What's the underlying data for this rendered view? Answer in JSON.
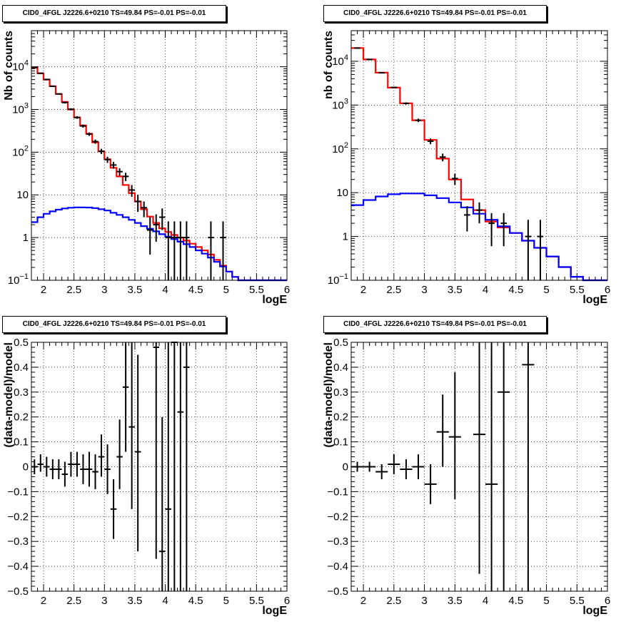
{
  "panels": [
    {
      "title": "CID0_4FGL J2226.6+0210 TS=49.84 PS=-0.01 PS=-0.01",
      "chart_data": {
        "type": "line",
        "xlabel": "logE",
        "ylabel": "Nb of counts",
        "log_y": true,
        "xlim": [
          1.8,
          6.0
        ],
        "ylim": [
          0.1,
          70000
        ],
        "xticks": [
          "2",
          "2.5",
          "3",
          "3.5",
          "4",
          "4.5",
          "5",
          "5.5",
          "6"
        ],
        "yticks": [
          "10^-1",
          "1",
          "10",
          "10^2",
          "10^3",
          "10^4"
        ],
        "grid": true,
        "bin_edges": [
          1.8,
          1.9,
          2.0,
          2.1,
          2.2,
          2.3,
          2.4,
          2.5,
          2.6,
          2.7,
          2.8,
          2.9,
          3.0,
          3.1,
          3.2,
          3.3,
          3.4,
          3.5,
          3.6,
          3.7,
          3.8,
          3.9,
          4.0,
          4.1,
          4.2,
          4.3,
          4.4,
          4.5,
          4.6,
          4.7,
          4.8,
          4.9,
          5.0,
          5.1,
          5.2,
          5.3,
          5.4,
          5.5,
          5.6,
          5.7,
          5.8,
          5.9,
          6.0
        ],
        "series": [
          {
            "color": "#ff0000",
            "values": [
              9500,
              7000,
              5000,
              3500,
              2300,
              1500,
              1000,
              650,
              420,
              270,
              170,
              105,
              68,
              43,
              27,
              17,
              11,
              7,
              4.6,
              3.1,
              2.2,
              1.65,
              1.35,
              1.15,
              1.0,
              0.85,
              0.72,
              0.6,
              0.5,
              0.4,
              0.3,
              0.22,
              0.16,
              0.12,
              0.1,
              0.1,
              0.1,
              0.1,
              0.1,
              0.1,
              0.1,
              0.1
            ]
          },
          {
            "color": "#0000ff",
            "values": [
              2.3,
              3.0,
              3.6,
              4.1,
              4.5,
              4.8,
              5.0,
              5.1,
              5.1,
              5.05,
              4.9,
              4.6,
              4.3,
              3.8,
              3.4,
              3.0,
              2.6,
              2.2,
              1.85,
              1.6,
              1.4,
              1.2,
              1.05,
              0.92,
              0.8,
              0.7,
              0.6,
              0.5,
              0.42,
              0.34,
              0.27,
              0.21,
              0.16,
              0.12,
              0.1,
              0.1,
              0.1,
              0.1,
              0.1,
              0.1,
              0.1,
              0.1
            ]
          }
        ],
        "points": [
          {
            "x": 1.85,
            "y": 9600,
            "ylo": 9400,
            "yhi": 9800
          },
          {
            "x": 1.95,
            "y": 7050,
            "ylo": 6900,
            "yhi": 7200
          },
          {
            "x": 2.05,
            "y": 5050,
            "ylo": 4900,
            "yhi": 5200
          },
          {
            "x": 2.15,
            "y": 3480,
            "ylo": 3370,
            "yhi": 3590
          },
          {
            "x": 2.25,
            "y": 2310,
            "ylo": 2220,
            "yhi": 2400
          },
          {
            "x": 2.35,
            "y": 1450,
            "ylo": 1380,
            "yhi": 1520
          },
          {
            "x": 2.45,
            "y": 1010,
            "ylo": 950,
            "yhi": 1070
          },
          {
            "x": 2.55,
            "y": 650,
            "ylo": 605,
            "yhi": 695
          },
          {
            "x": 2.65,
            "y": 410,
            "ylo": 375,
            "yhi": 445
          },
          {
            "x": 2.75,
            "y": 265,
            "ylo": 240,
            "yhi": 290
          },
          {
            "x": 2.85,
            "y": 177,
            "ylo": 157,
            "yhi": 197
          },
          {
            "x": 2.95,
            "y": 105,
            "ylo": 90,
            "yhi": 120
          },
          {
            "x": 3.05,
            "y": 67,
            "ylo": 56,
            "yhi": 78
          },
          {
            "x": 3.15,
            "y": 50,
            "ylo": 41,
            "yhi": 59
          },
          {
            "x": 3.25,
            "y": 35,
            "ylo": 28,
            "yhi": 42
          },
          {
            "x": 3.35,
            "y": 27,
            "ylo": 21,
            "yhi": 33
          },
          {
            "x": 3.45,
            "y": 13,
            "ylo": 9,
            "yhi": 17
          },
          {
            "x": 3.55,
            "y": 7,
            "ylo": 4,
            "yhi": 10
          },
          {
            "x": 3.65,
            "y": 5,
            "ylo": 3,
            "yhi": 7
          },
          {
            "x": 3.75,
            "y": 1.5,
            "ylo": 0.4,
            "yhi": 3
          },
          {
            "x": 3.85,
            "y": 2,
            "ylo": 0.8,
            "yhi": 3.5
          },
          {
            "x": 3.95,
            "y": 3,
            "ylo": 1.5,
            "yhi": 4.8
          },
          {
            "x": 4.05,
            "y": 1,
            "ylo": 0.1,
            "yhi": 2.4
          },
          {
            "x": 4.15,
            "y": 1,
            "ylo": 0.1,
            "yhi": 2.4
          },
          {
            "x": 4.25,
            "y": 1,
            "ylo": 0.1,
            "yhi": 2.4
          },
          {
            "x": 4.35,
            "y": 1,
            "ylo": 0.1,
            "yhi": 2.4
          },
          {
            "x": 4.75,
            "y": 1,
            "ylo": 0.1,
            "yhi": 2.4
          },
          {
            "x": 4.95,
            "y": 1,
            "ylo": 0.1,
            "yhi": 2.4
          }
        ]
      }
    },
    {
      "title": "CID0_4FGL J2226.6+0210 TS=49.84 PS=-0.01 PS=-0.01",
      "chart_data": {
        "type": "line",
        "xlabel": "logE",
        "ylabel": "nb of counts",
        "log_y": true,
        "xlim": [
          1.8,
          6.0
        ],
        "ylim": [
          0.1,
          50000
        ],
        "xticks": [
          "2",
          "2.5",
          "3",
          "3.5",
          "4",
          "4.5",
          "5",
          "5.5",
          "6"
        ],
        "yticks": [
          "10^-1",
          "1",
          "10",
          "10^2",
          "10^3",
          "10^4"
        ],
        "grid": true,
        "bin_edges": [
          1.8,
          2.0,
          2.2,
          2.4,
          2.6,
          2.8,
          3.0,
          3.2,
          3.4,
          3.6,
          3.8,
          4.0,
          4.2,
          4.4,
          4.6,
          4.8,
          5.0,
          5.2,
          5.4,
          5.6,
          5.8,
          6.0
        ],
        "series": [
          {
            "color": "#ff0000",
            "values": [
              20000,
              11000,
              5500,
              2500,
              1100,
              450,
              160,
              60,
              20,
              7,
              4,
              2.2,
              1.6,
              1.2,
              0.8,
              0.55,
              0.35,
              0.2,
              0.12,
              0.1,
              0.1
            ]
          },
          {
            "color": "#0000ff",
            "values": [
              5.2,
              6.8,
              8.2,
              9.2,
              9.6,
              9.6,
              8.7,
              7.5,
              6.0,
              4.6,
              3.3,
              2.4,
              1.7,
              1.2,
              0.8,
              0.55,
              0.35,
              0.2,
              0.12,
              0.1,
              0.1
            ]
          }
        ],
        "points": [
          {
            "x": 1.9,
            "y": 20000,
            "ylo": 19700,
            "yhi": 20300
          },
          {
            "x": 2.1,
            "y": 11000,
            "ylo": 10800,
            "yhi": 11200
          },
          {
            "x": 2.3,
            "y": 5450,
            "ylo": 5300,
            "yhi": 5600
          },
          {
            "x": 2.5,
            "y": 2530,
            "ylo": 2430,
            "yhi": 2630
          },
          {
            "x": 2.7,
            "y": 1090,
            "ylo": 1030,
            "yhi": 1150
          },
          {
            "x": 2.9,
            "y": 450,
            "ylo": 410,
            "yhi": 490
          },
          {
            "x": 3.1,
            "y": 150,
            "ylo": 128,
            "yhi": 172
          },
          {
            "x": 3.3,
            "y": 65,
            "ylo": 52,
            "yhi": 78
          },
          {
            "x": 3.5,
            "y": 21,
            "ylo": 15,
            "yhi": 27
          },
          {
            "x": 3.7,
            "y": 3.1,
            "ylo": 1.3,
            "yhi": 4.9
          },
          {
            "x": 3.9,
            "y": 4,
            "ylo": 2,
            "yhi": 6
          },
          {
            "x": 4.1,
            "y": 2,
            "ylo": 0.6,
            "yhi": 3.4
          },
          {
            "x": 4.3,
            "y": 2,
            "ylo": 0.6,
            "yhi": 3.4
          },
          {
            "x": 4.7,
            "y": 1,
            "ylo": 0.1,
            "yhi": 2.4
          },
          {
            "x": 4.9,
            "y": 1,
            "ylo": 0.1,
            "yhi": 2.4
          }
        ]
      }
    },
    {
      "title": "CID0_4FGL J2226.6+0210 TS=49.84 PS=-0.01 PS=-0.01",
      "chart_data": {
        "type": "scatter",
        "xlabel": "logE",
        "ylabel": "(data-model)/model",
        "xlim": [
          1.8,
          6.0
        ],
        "ylim": [
          -0.5,
          0.5
        ],
        "xticks": [
          "2",
          "2.5",
          "3",
          "3.5",
          "4",
          "4.5",
          "5",
          "5.5",
          "6"
        ],
        "yticks": [
          "−0.5",
          "−0.4",
          "−0.3",
          "−0.2",
          "−0.1",
          "0",
          "0.1",
          "0.2",
          "0.3",
          "0.4",
          "0.5"
        ],
        "grid": true,
        "xerr": 0.05,
        "points": [
          {
            "x": 1.85,
            "y": 0.0,
            "ylo": -0.03,
            "yhi": 0.03
          },
          {
            "x": 1.95,
            "y": 0.01,
            "ylo": -0.02,
            "yhi": 0.05
          },
          {
            "x": 2.05,
            "y": 0.0,
            "ylo": -0.04,
            "yhi": 0.04
          },
          {
            "x": 2.15,
            "y": -0.01,
            "ylo": -0.05,
            "yhi": 0.03
          },
          {
            "x": 2.25,
            "y": -0.01,
            "ylo": -0.05,
            "yhi": 0.03
          },
          {
            "x": 2.35,
            "y": -0.03,
            "ylo": -0.08,
            "yhi": 0.02
          },
          {
            "x": 2.45,
            "y": 0.01,
            "ylo": -0.04,
            "yhi": 0.06
          },
          {
            "x": 2.55,
            "y": 0.01,
            "ylo": -0.04,
            "yhi": 0.06
          },
          {
            "x": 2.65,
            "y": -0.01,
            "ylo": -0.07,
            "yhi": 0.05
          },
          {
            "x": 2.75,
            "y": -0.01,
            "ylo": -0.08,
            "yhi": 0.06
          },
          {
            "x": 2.85,
            "y": -0.02,
            "ylo": -0.09,
            "yhi": 0.05
          },
          {
            "x": 2.95,
            "y": 0.04,
            "ylo": -0.04,
            "yhi": 0.13
          },
          {
            "x": 3.05,
            "y": -0.01,
            "ylo": -0.11,
            "yhi": 0.09
          },
          {
            "x": 3.15,
            "y": -0.17,
            "ylo": -0.29,
            "yhi": -0.05
          },
          {
            "x": 3.25,
            "y": 0.04,
            "ylo": -0.09,
            "yhi": 0.19
          },
          {
            "x": 3.35,
            "y": 0.32,
            "ylo": 0.06,
            "yhi": 0.5
          },
          {
            "x": 3.45,
            "y": 0.16,
            "ylo": -0.17,
            "yhi": 0.5
          },
          {
            "x": 3.55,
            "y": 0.06,
            "ylo": -0.34,
            "yhi": 0.45
          },
          {
            "x": 3.85,
            "y": 0.48,
            "ylo": -0.37,
            "yhi": 0.5
          },
          {
            "x": 3.95,
            "y": -0.34,
            "ylo": -0.5,
            "yhi": 0.2
          },
          {
            "x": 4.05,
            "y": -0.17,
            "ylo": -0.5,
            "yhi": 0.5
          },
          {
            "x": 4.15,
            "y": 0.5,
            "ylo": -0.5,
            "yhi": 0.5
          },
          {
            "x": 4.25,
            "y": 0.22,
            "ylo": -0.5,
            "yhi": 0.5
          },
          {
            "x": 4.35,
            "y": 0.4,
            "ylo": -0.5,
            "yhi": 0.5
          }
        ]
      }
    },
    {
      "title": "CID0_4FGL J2226.6+0210 TS=49.84 PS=-0.01 PS=-0.01",
      "chart_data": {
        "type": "scatter",
        "xlabel": "logE",
        "ylabel": "(data-model)/model",
        "xlim": [
          1.8,
          6.0
        ],
        "ylim": [
          -0.5,
          0.5
        ],
        "xticks": [
          "2",
          "2.5",
          "3",
          "3.5",
          "4",
          "4.5",
          "5",
          "5.5",
          "6"
        ],
        "yticks": [
          "−0.5",
          "−0.4",
          "−0.3",
          "−0.2",
          "−0.1",
          "0",
          "0.1",
          "0.2",
          "0.3",
          "0.4",
          "0.5"
        ],
        "grid": true,
        "xerr": 0.1,
        "points": [
          {
            "x": 1.9,
            "y": 0.0,
            "ylo": -0.02,
            "yhi": 0.02
          },
          {
            "x": 2.1,
            "y": 0.0,
            "ylo": -0.02,
            "yhi": 0.02
          },
          {
            "x": 2.3,
            "y": -0.02,
            "ylo": -0.05,
            "yhi": 0.01
          },
          {
            "x": 2.5,
            "y": 0.01,
            "ylo": -0.03,
            "yhi": 0.05
          },
          {
            "x": 2.7,
            "y": -0.01,
            "ylo": -0.05,
            "yhi": 0.03
          },
          {
            "x": 2.9,
            "y": 0.0,
            "ylo": -0.05,
            "yhi": 0.05
          },
          {
            "x": 3.1,
            "y": -0.07,
            "ylo": -0.15,
            "yhi": 0.01
          },
          {
            "x": 3.3,
            "y": 0.14,
            "ylo": 0.0,
            "yhi": 0.29
          },
          {
            "x": 3.5,
            "y": 0.12,
            "ylo": -0.13,
            "yhi": 0.38
          },
          {
            "x": 3.9,
            "y": 0.13,
            "ylo": -0.43,
            "yhi": 0.5
          },
          {
            "x": 4.1,
            "y": -0.07,
            "ylo": -0.5,
            "yhi": 0.5
          },
          {
            "x": 4.3,
            "y": 0.3,
            "ylo": -0.5,
            "yhi": 0.5
          },
          {
            "x": 4.7,
            "y": 0.41,
            "ylo": -0.5,
            "yhi": 0.5
          }
        ]
      }
    }
  ]
}
